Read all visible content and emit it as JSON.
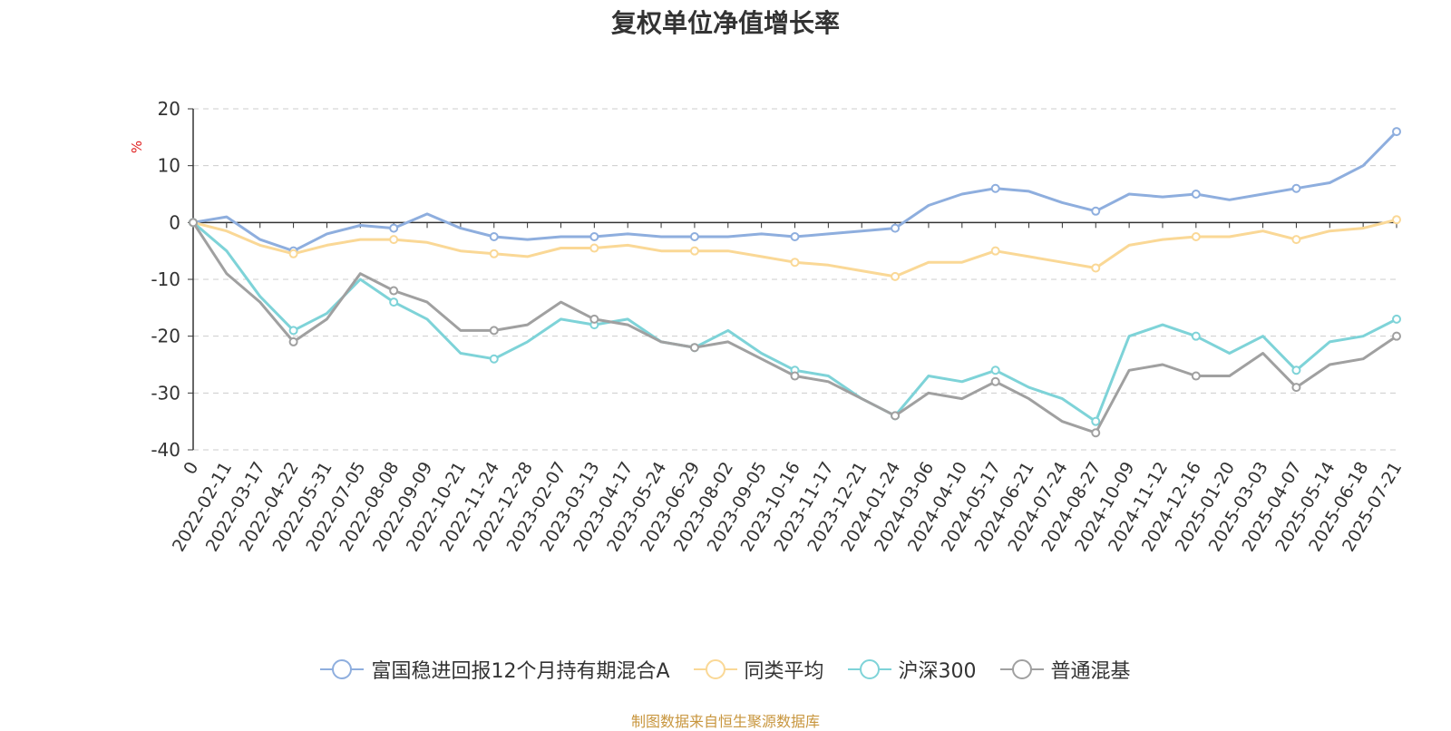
{
  "chart_data": {
    "type": "line",
    "title": "复权单位净值增长率",
    "ylabel": "%",
    "ylim": [
      -40,
      20
    ],
    "yticks": [
      20,
      10,
      0,
      -10,
      -20,
      -30,
      -40
    ],
    "grid": true,
    "legend_position": "bottom",
    "x_tick_labels": [
      "0",
      "2022-02-11",
      "2022-03-17",
      "2022-04-22",
      "2022-05-31",
      "2022-07-05",
      "2022-08-08",
      "2022-09-09",
      "2022-10-21",
      "2022-11-24",
      "2022-12-28",
      "2023-02-07",
      "2023-03-13",
      "2023-04-17",
      "2023-05-24",
      "2023-06-29",
      "2023-08-02",
      "2023-09-05",
      "2023-10-16",
      "2023-11-17",
      "2023-12-21",
      "2024-01-24",
      "2024-03-06",
      "2024-04-10",
      "2024-05-17",
      "2024-06-21",
      "2024-07-24",
      "2024-08-27",
      "2024-10-09",
      "2024-11-12",
      "2024-12-16",
      "2025-01-20",
      "2025-03-03",
      "2025-04-07",
      "2025-05-14",
      "2025-06-18",
      "2025-07-21"
    ],
    "series": [
      {
        "name": "富国稳进回报12个月持有期混合A",
        "color": "#8eaede",
        "values": [
          0,
          1,
          -3,
          -5,
          -2,
          -0.5,
          -1,
          1.5,
          -1,
          -2.5,
          -3,
          -2.5,
          -2.5,
          -2,
          -2.5,
          -2.5,
          -2.5,
          -2,
          -2.5,
          -2,
          -1.5,
          -1,
          3,
          5,
          6,
          5.5,
          3.5,
          2,
          5,
          4.5,
          5,
          4,
          5,
          6,
          7,
          10,
          16
        ]
      },
      {
        "name": "同类平均",
        "color": "#fad896",
        "values": [
          0,
          -1.5,
          -4,
          -5.5,
          -4,
          -3,
          -3,
          -3.5,
          -5,
          -5.5,
          -6,
          -4.5,
          -4.5,
          -4,
          -5,
          -5,
          -5,
          -6,
          -7,
          -7.5,
          -8.5,
          -9.5,
          -7,
          -7,
          -5,
          -6,
          -7,
          -8,
          -4,
          -3,
          -2.5,
          -2.5,
          -1.5,
          -3,
          -1.5,
          -1,
          0.5
        ]
      },
      {
        "name": "沪深300",
        "color": "#7ed3d8",
        "values": [
          0,
          -5,
          -13,
          -19,
          -16,
          -10,
          -14,
          -17,
          -23,
          -24,
          -21,
          -17,
          -18,
          -17,
          -21,
          -22,
          -19,
          -23,
          -26,
          -27,
          -31,
          -34,
          -27,
          -28,
          -26,
          -29,
          -31,
          -35,
          -20,
          -18,
          -20,
          -23,
          -20,
          -26,
          -21,
          -20,
          -17
        ]
      },
      {
        "name": "普通混基",
        "color": "#a0a0a0",
        "values": [
          0,
          -9,
          -14,
          -21,
          -17,
          -9,
          -12,
          -14,
          -19,
          -19,
          -18,
          -14,
          -17,
          -18,
          -21,
          -22,
          -21,
          -24,
          -27,
          -28,
          -31,
          -34,
          -30,
          -31,
          -28,
          -31,
          -35,
          -37,
          -26,
          -25,
          -27,
          -27,
          -23,
          -29,
          -25,
          -24,
          -20
        ]
      }
    ]
  },
  "legend": {
    "items": [
      {
        "label": "富国稳进回报12个月持有期混合A",
        "color": "#8eaede"
      },
      {
        "label": "同类平均",
        "color": "#fad896"
      },
      {
        "label": "沪深300",
        "color": "#7ed3d8"
      },
      {
        "label": "普通混基",
        "color": "#a0a0a0"
      }
    ]
  },
  "footer": {
    "source": "制图数据来自恒生聚源数据库"
  }
}
